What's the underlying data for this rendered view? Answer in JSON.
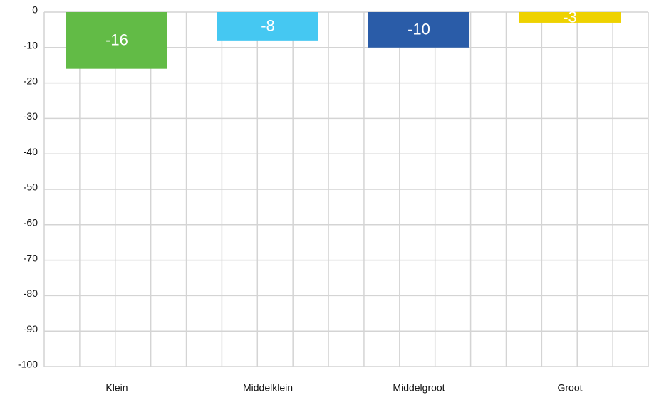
{
  "chart_data": {
    "type": "bar",
    "categories": [
      "Klein",
      "Middelklein",
      "Middelgroot",
      "Groot"
    ],
    "values": [
      -16,
      -8,
      -10,
      -3
    ],
    "colors": [
      "#62bb46",
      "#45c8f2",
      "#2a5ca8",
      "#eed200"
    ],
    "ylim": [
      -100,
      0
    ],
    "yticks": [
      0,
      -10,
      -20,
      -30,
      -40,
      -50,
      -60,
      -70,
      -80,
      -90,
      -100
    ],
    "grid": true
  }
}
